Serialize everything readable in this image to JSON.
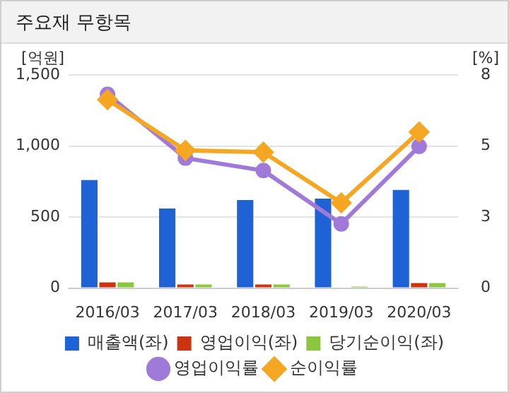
{
  "chart_data": {
    "type": "bar",
    "title": "주요재 무항목",
    "ylabel": "[억원]",
    "y2label": "[%]",
    "categories": [
      "2016/03",
      "2017/03",
      "2018/03",
      "2019/03",
      "2020/03"
    ],
    "series": [
      {
        "name": "매출액(좌)",
        "color": "#1f62d6",
        "values": [
          760,
          560,
          620,
          630,
          690
        ]
      },
      {
        "name": "영업이익(좌)",
        "color": "#cc3311",
        "values": [
          40,
          25,
          25,
          5,
          35
        ]
      },
      {
        "name": "당기순이익(좌)",
        "color": "#8cc63f",
        "values": [
          40,
          25,
          25,
          10,
          35
        ]
      },
      {
        "name": "영업이익률",
        "type": "line",
        "axis": "y2",
        "marker": "circle",
        "color": "#a07ad8",
        "values": [
          7.27,
          4.88,
          4.41,
          2.41,
          5.32
        ]
      },
      {
        "name": "순이익률",
        "type": "line",
        "axis": "y2",
        "marker": "diamond",
        "color": "#f5a623",
        "values": [
          7.07,
          5.17,
          5.1,
          3.2,
          5.86
        ]
      }
    ],
    "ylim": [
      0,
      1500
    ],
    "yticks": [
      0,
      {
        "value": 500,
        "label": "500"
      },
      {
        "value": 1000,
        "label": "1,000"
      },
      {
        "value": 1500,
        "label": "1,500"
      }
    ],
    "y2lim": [
      0,
      8
    ],
    "y2ticks": [
      0,
      {
        "value": 2.667,
        "label": "3"
      },
      {
        "value": 5.333,
        "label": "5"
      },
      8
    ],
    "grid": "y",
    "legend": "bottom"
  }
}
